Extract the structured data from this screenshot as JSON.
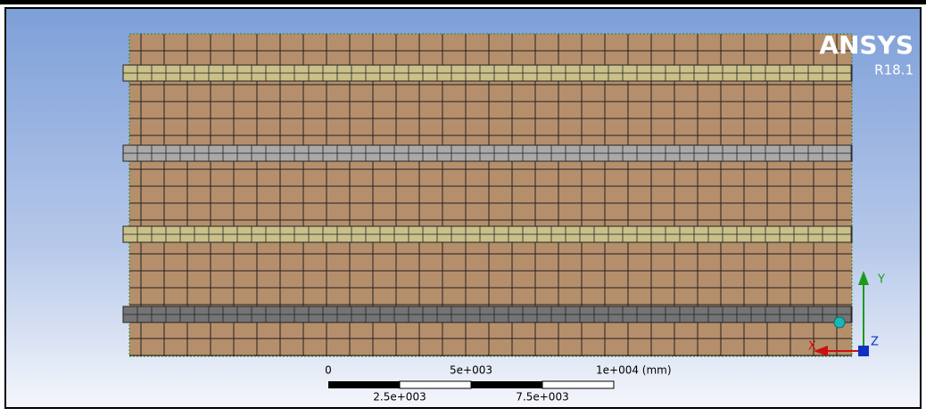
{
  "logo": {
    "brand": "ANSYS",
    "version": "R18.1"
  },
  "scale_bar": {
    "top_labels": [
      "0",
      "5e+003",
      "1e+004 (mm)"
    ],
    "bottom_labels": [
      "2.5e+003",
      "7.5e+003"
    ]
  },
  "triad": {
    "y_label": "Y",
    "x_label": "X",
    "z_label": "Z"
  }
}
